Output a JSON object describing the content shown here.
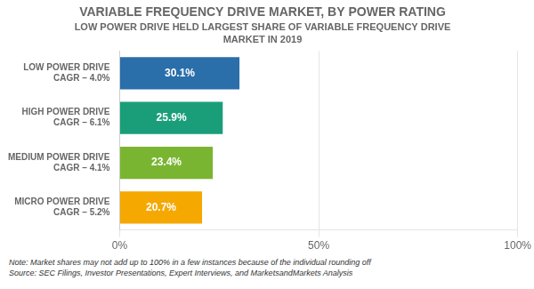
{
  "chart_data": {
    "type": "bar",
    "orientation": "horizontal",
    "title": "VARIABLE FREQUENCY DRIVE MARKET, BY POWER RATING",
    "subtitle": "LOW POWER DRIVE HELD LARGEST SHARE OF VARIABLE FREQUENCY DRIVE\nMARKET IN 2019",
    "categories": [
      "LOW POWER DRIVE",
      "HIGH POWER DRIVE",
      "MEDIUM POWER DRIVE",
      "MICRO POWER DRIVE"
    ],
    "annotations": [
      "CAGR – 4.0%",
      "CAGR – 6.1%",
      "CAGR – 4.1%",
      "CAGR – 5.2%"
    ],
    "values": [
      30.1,
      25.9,
      23.4,
      20.7
    ],
    "value_labels": [
      "30.1%",
      "25.9%",
      "23.4%",
      "20.7%"
    ],
    "data_labels": true,
    "colors": [
      "#2A6EAA",
      "#1A9E7A",
      "#7AB531",
      "#F5A800"
    ],
    "xlim": [
      0,
      100
    ],
    "xticks": [
      {
        "value": 0,
        "label": "0%"
      },
      {
        "value": 50,
        "label": "50%"
      },
      {
        "value": 100,
        "label": "100%"
      }
    ],
    "grid": true,
    "note": "Note: Market shares may not add up to 100% in a few instances because of the individual rounding off",
    "source": "Source: SEC Filings, Investor Presentations, Expert Interviews, and MarketsandMarkets Analysis"
  }
}
